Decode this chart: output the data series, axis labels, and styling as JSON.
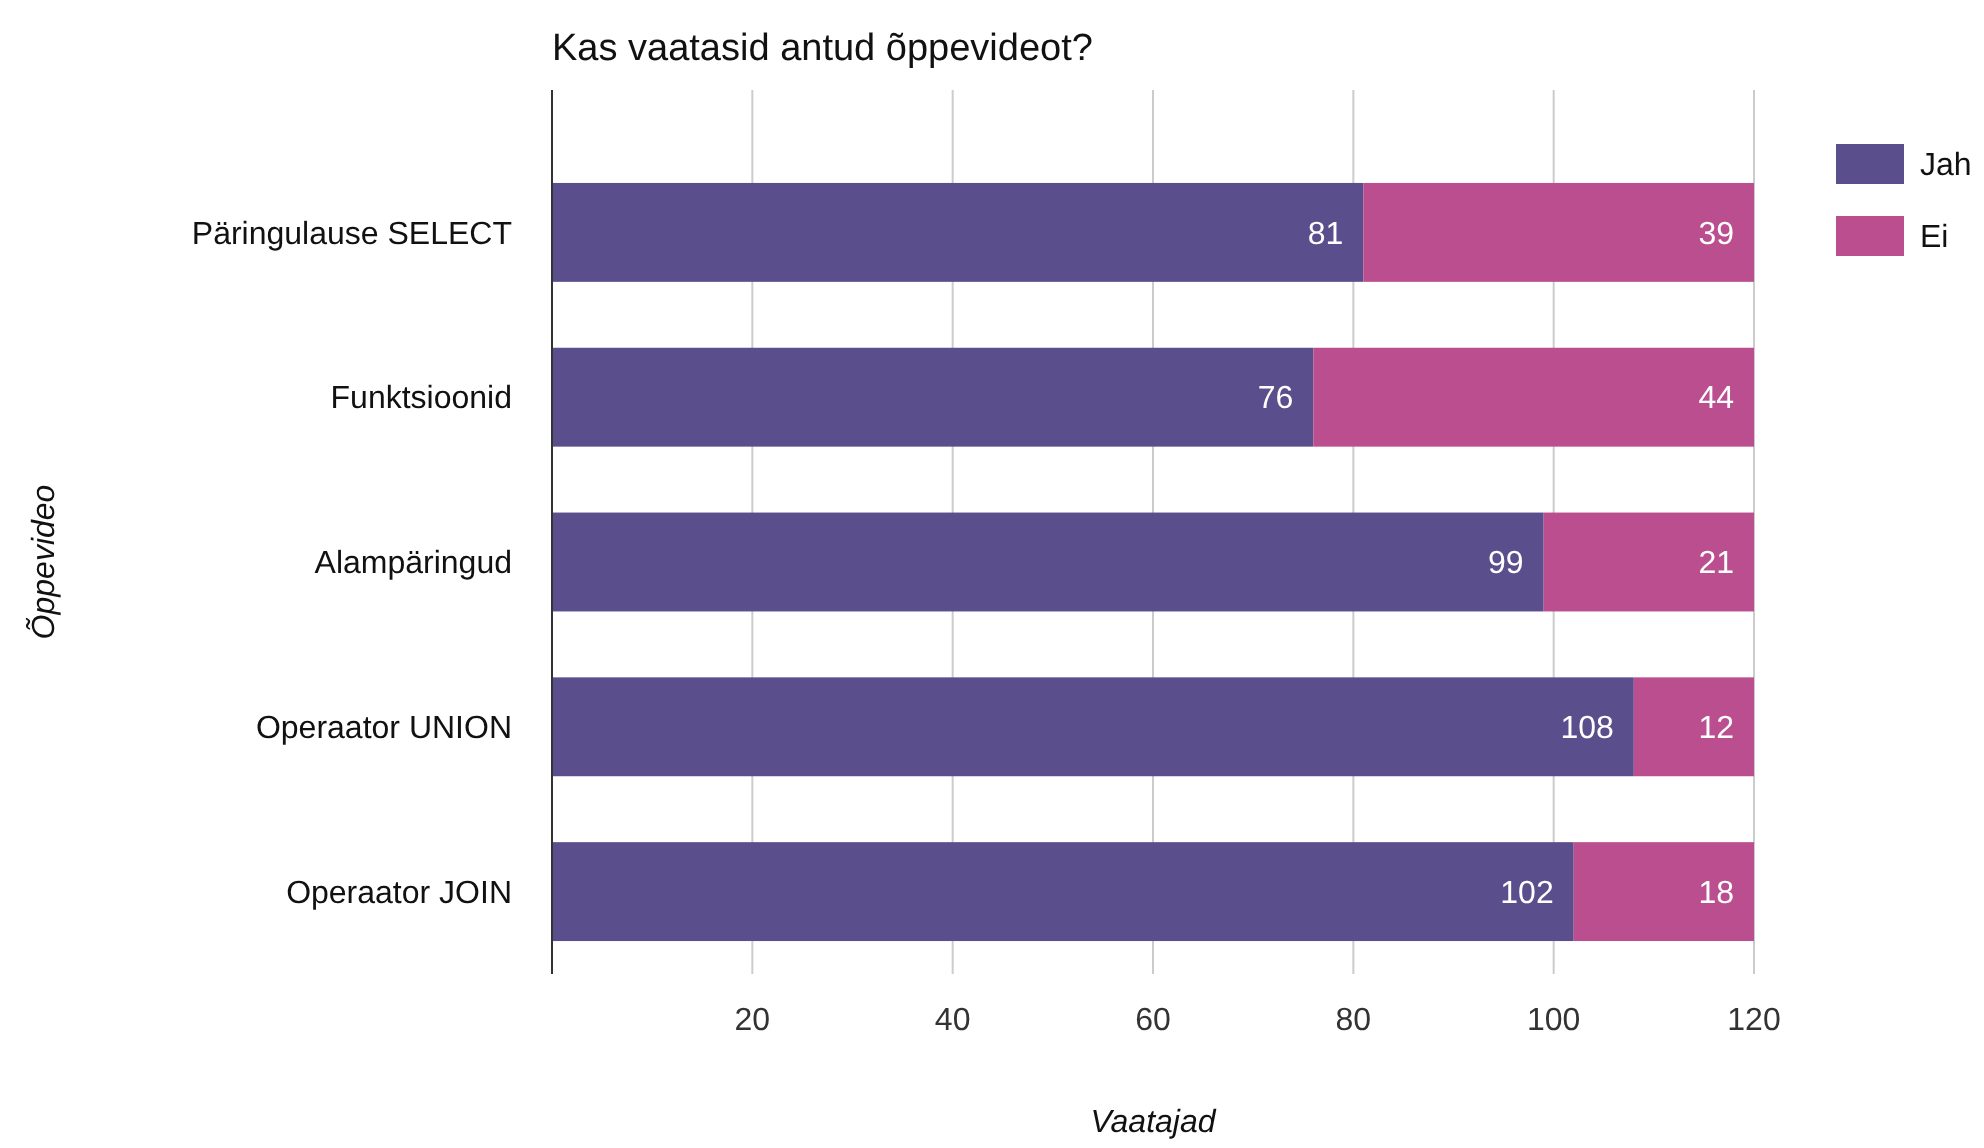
{
  "chart_data": {
    "type": "bar",
    "orientation": "horizontal",
    "stacked": true,
    "title": "Kas vaatasid antud õppevideot?",
    "xlabel": "Vaatajad",
    "ylabel": "Õppevideo",
    "categories": [
      "Päringulause SELECT",
      "Funktsioonid",
      "Alampäringud",
      "Operaator UNION",
      "Operaator JOIN"
    ],
    "series": [
      {
        "name": "Jah",
        "color": "#5a4e8c",
        "values": [
          81,
          76,
          99,
          108,
          102
        ]
      },
      {
        "name": "Ei",
        "color": "#ba4e8f",
        "values": [
          39,
          44,
          21,
          12,
          18
        ]
      }
    ],
    "xlim": [
      0,
      120
    ],
    "xticks": [
      20,
      40,
      60,
      80,
      100,
      120
    ],
    "grid": "x",
    "legend": "top right",
    "data_labels": true
  }
}
